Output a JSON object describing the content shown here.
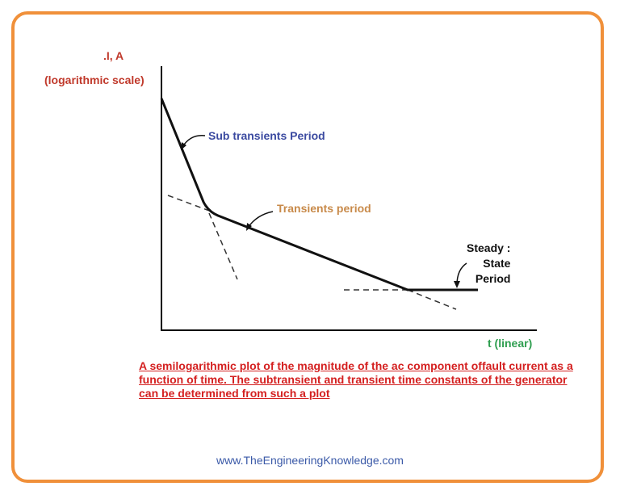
{
  "y_axis_label": ".I, A",
  "y_axis_scale": "(logarithmic scale)",
  "x_axis_label": "t (linear)",
  "labels": {
    "subtransient": "Sub transients Period",
    "transient": "Transients period",
    "steady_lines": [
      "Steady :",
      "State",
      "Period"
    ]
  },
  "caption": "A semilogarithmic plot of the magnitude of the ac component offault current as a function of time. The subtransient and transient time constants of the generator can be determined from such a plot",
  "footer": "www.TheEngineeringKnowledge.com",
  "colors": {
    "frame": "#f0903a",
    "y_label": "#c0392b",
    "subtransient": "#3b4aa0",
    "transient": "#c88a4a",
    "x_label": "#2e9e4f",
    "caption": "#d42020",
    "footer": "#3b5aa8"
  }
}
